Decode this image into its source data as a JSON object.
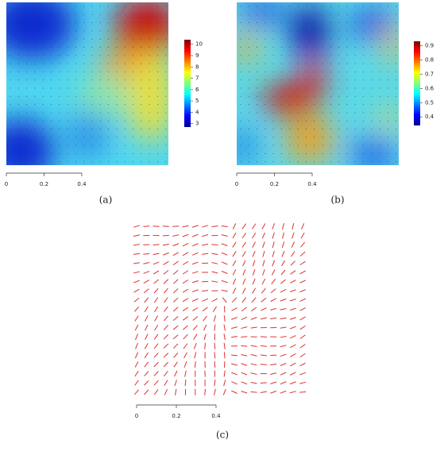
{
  "panels": [
    {
      "label": "(a)",
      "colorbar": {
        "ticks": [
          3,
          4,
          5,
          6,
          7,
          8,
          9,
          10
        ],
        "limits": [
          2.7,
          10.4
        ]
      },
      "scale": {
        "ticks": [
          0,
          0.2,
          0.4
        ]
      }
    },
    {
      "label": "(b)",
      "colorbar": {
        "ticks": [
          0.4,
          0.5,
          0.6,
          0.7,
          0.8,
          0.9
        ],
        "limits": [
          0.34,
          0.93
        ]
      },
      "scale": {
        "ticks": [
          0,
          0.2,
          0.4
        ]
      }
    },
    {
      "label": "(c)",
      "scale": {
        "ticks": [
          0,
          0.2,
          0.4
        ]
      }
    }
  ]
}
